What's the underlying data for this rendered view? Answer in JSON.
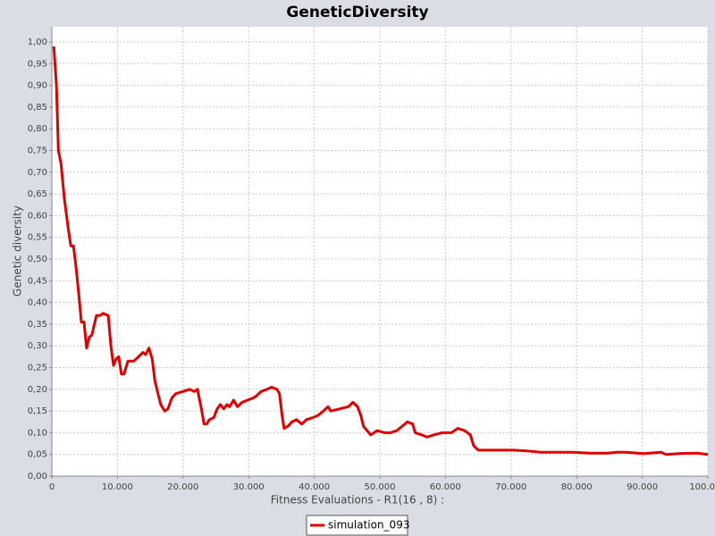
{
  "chart_data": {
    "type": "line",
    "title": "GeneticDiversity",
    "x_label": "Fitness Evaluations - R1(16 , 8) :",
    "y_label": "Genetic diversity",
    "x": [
      300,
      700,
      1000,
      1400,
      1900,
      2500,
      2900,
      3300,
      3700,
      4100,
      4500,
      4900,
      5300,
      5700,
      6100,
      6800,
      7400,
      7800,
      8600,
      9000,
      9400,
      9800,
      10200,
      10600,
      11000,
      11600,
      12500,
      13200,
      13900,
      14300,
      14800,
      15300,
      15700,
      16100,
      16600,
      17200,
      17700,
      18300,
      18900,
      20000,
      21000,
      21700,
      22200,
      22800,
      23200,
      23600,
      24000,
      24700,
      25200,
      25700,
      26200,
      26700,
      27100,
      27700,
      28300,
      29000,
      29800,
      30700,
      31200,
      31900,
      32800,
      33500,
      34300,
      34700,
      35100,
      35400,
      36000,
      36600,
      37300,
      38100,
      38800,
      39800,
      40600,
      41400,
      42100,
      42500,
      43900,
      45200,
      45900,
      46600,
      47100,
      47500,
      48600,
      49600,
      50700,
      51600,
      52600,
      53400,
      54200,
      55000,
      55400,
      56400,
      57200,
      58200,
      59500,
      60900,
      61900,
      62900,
      63800,
      64300,
      65000,
      66300,
      67700,
      69100,
      70400,
      72500,
      74500,
      76600,
      79300,
      82000,
      84700,
      86100,
      87500,
      90200,
      92900,
      93600,
      95600,
      98400,
      100000
    ],
    "series": [
      {
        "name": "simulation_093",
        "color": "#e00000",
        "values": [
          0.99,
          0.9,
          0.75,
          0.72,
          0.64,
          0.57,
          0.53,
          0.53,
          0.48,
          0.42,
          0.355,
          0.355,
          0.295,
          0.32,
          0.325,
          0.37,
          0.37,
          0.375,
          0.37,
          0.3,
          0.255,
          0.27,
          0.275,
          0.235,
          0.235,
          0.265,
          0.265,
          0.275,
          0.285,
          0.28,
          0.295,
          0.27,
          0.22,
          0.195,
          0.165,
          0.15,
          0.155,
          0.18,
          0.19,
          0.195,
          0.2,
          0.195,
          0.2,
          0.155,
          0.12,
          0.12,
          0.13,
          0.135,
          0.155,
          0.165,
          0.155,
          0.165,
          0.16,
          0.175,
          0.16,
          0.17,
          0.175,
          0.18,
          0.185,
          0.195,
          0.2,
          0.205,
          0.2,
          0.19,
          0.14,
          0.11,
          0.115,
          0.125,
          0.13,
          0.12,
          0.13,
          0.135,
          0.14,
          0.15,
          0.16,
          0.15,
          0.155,
          0.16,
          0.17,
          0.16,
          0.14,
          0.115,
          0.095,
          0.105,
          0.1,
          0.1,
          0.105,
          0.115,
          0.125,
          0.12,
          0.1,
          0.095,
          0.09,
          0.095,
          0.1,
          0.1,
          0.11,
          0.105,
          0.095,
          0.07,
          0.06,
          0.06,
          0.06,
          0.06,
          0.06,
          0.058,
          0.055,
          0.055,
          0.055,
          0.053,
          0.053,
          0.055,
          0.055,
          0.052,
          0.055,
          0.05,
          0.052,
          0.053,
          0.05
        ]
      }
    ],
    "xlim": [
      0,
      100000
    ],
    "ylim": [
      0,
      1.035
    ],
    "xticks": [
      {
        "value": 0,
        "label": "0"
      },
      {
        "value": 10000,
        "label": "10.000"
      },
      {
        "value": 20000,
        "label": "20.000"
      },
      {
        "value": 30000,
        "label": "30.000"
      },
      {
        "value": 40000,
        "label": "40.000"
      },
      {
        "value": 50000,
        "label": "50.000"
      },
      {
        "value": 60000,
        "label": "60.000"
      },
      {
        "value": 70000,
        "label": "70.000"
      },
      {
        "value": 80000,
        "label": "80.000"
      },
      {
        "value": 90000,
        "label": "90.000"
      },
      {
        "value": 100000,
        "label": "100.000"
      }
    ],
    "yticks": [
      {
        "value": 0,
        "label": "0,00"
      },
      {
        "value": 0.05,
        "label": "0,05"
      },
      {
        "value": 0.1,
        "label": "0,10"
      },
      {
        "value": 0.15,
        "label": "0,15"
      },
      {
        "value": 0.2,
        "label": "0,20"
      },
      {
        "value": 0.25,
        "label": "0,25"
      },
      {
        "value": 0.3,
        "label": "0,30"
      },
      {
        "value": 0.35,
        "label": "0,35"
      },
      {
        "value": 0.4,
        "label": "0,40"
      },
      {
        "value": 0.45,
        "label": "0,45"
      },
      {
        "value": 0.5,
        "label": "0,50"
      },
      {
        "value": 0.55,
        "label": "0,55"
      },
      {
        "value": 0.6,
        "label": "0,60"
      },
      {
        "value": 0.65,
        "label": "0,65"
      },
      {
        "value": 0.7,
        "label": "0,70"
      },
      {
        "value": 0.75,
        "label": "0,75"
      },
      {
        "value": 0.8,
        "label": "0,80"
      },
      {
        "value": 0.85,
        "label": "0,85"
      },
      {
        "value": 0.9,
        "label": "0,90"
      },
      {
        "value": 0.95,
        "label": "0,95"
      },
      {
        "value": 1.0,
        "label": "1,00"
      }
    ],
    "grid": true,
    "legend": "bottom"
  }
}
